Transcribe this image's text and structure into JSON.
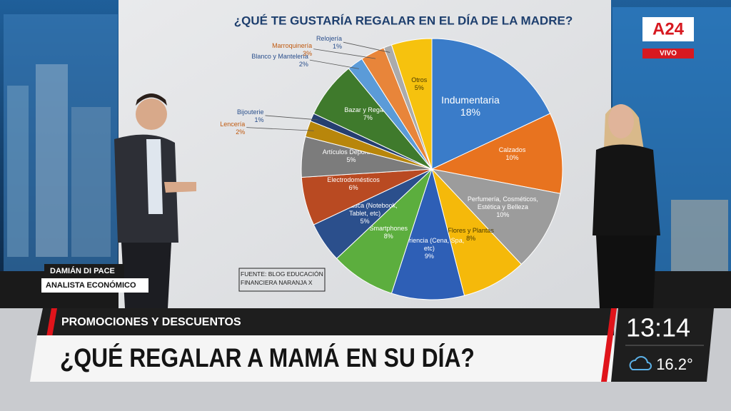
{
  "chart_data": {
    "type": "pie",
    "title": "¿QUÉ TE GUSTARÍA REGALAR EN EL DÍA DE LA MADRE?",
    "source": "FUENTE: BLOG EDUCACIÓN FINANCIERA NARANJA X",
    "categories": [
      "Indumentaria",
      "Calzados",
      "Perfumería, Cosméticos, Estética y Belleza",
      "Flores y Plantas",
      "Experiencia (Cena, Spa, etc)",
      "Smartphones",
      "Informática (Notebook, Tablet, etc)",
      "Electrodomésticos",
      "Artículos Deportivos",
      "Lencería",
      "Bijouterie",
      "Bazar y Regalos",
      "Blanco y Mantelería",
      "Marroquinería",
      "Relojería",
      "Otros"
    ],
    "values": [
      18,
      10,
      10,
      8,
      9,
      8,
      5,
      6,
      5,
      2,
      1,
      7,
      2,
      3,
      1,
      5
    ],
    "value_labels": [
      "18%",
      "10%",
      "10%",
      "8%",
      "9%",
      "8%",
      "5%",
      "6%",
      "5%",
      "2%",
      "1%",
      "7%",
      "2%",
      "3%",
      "1%",
      "5%"
    ],
    "colors": [
      "#3a7cc9",
      "#e8731f",
      "#9c9c9c",
      "#f5b90a",
      "#2e5fb6",
      "#5cae3e",
      "#2b4f8c",
      "#b94a22",
      "#7c7c7c",
      "#b8860b",
      "#263f70",
      "#3f7a2c",
      "#5b9bd8",
      "#e8853a",
      "#ababab",
      "#f6c20e"
    ]
  },
  "broadcast": {
    "channel": "A24",
    "live": "VIVO",
    "presenter_name": "DAMIÁN DI PACE",
    "presenter_role": "ANALISTA ECONÓMICO",
    "kicker": "PROMOCIONES Y DESCUENTOS",
    "headline": "¿QUÉ REGALAR A MAMÁ EN SU DÍA?",
    "time": "13:14",
    "temperature": "16.2°"
  }
}
